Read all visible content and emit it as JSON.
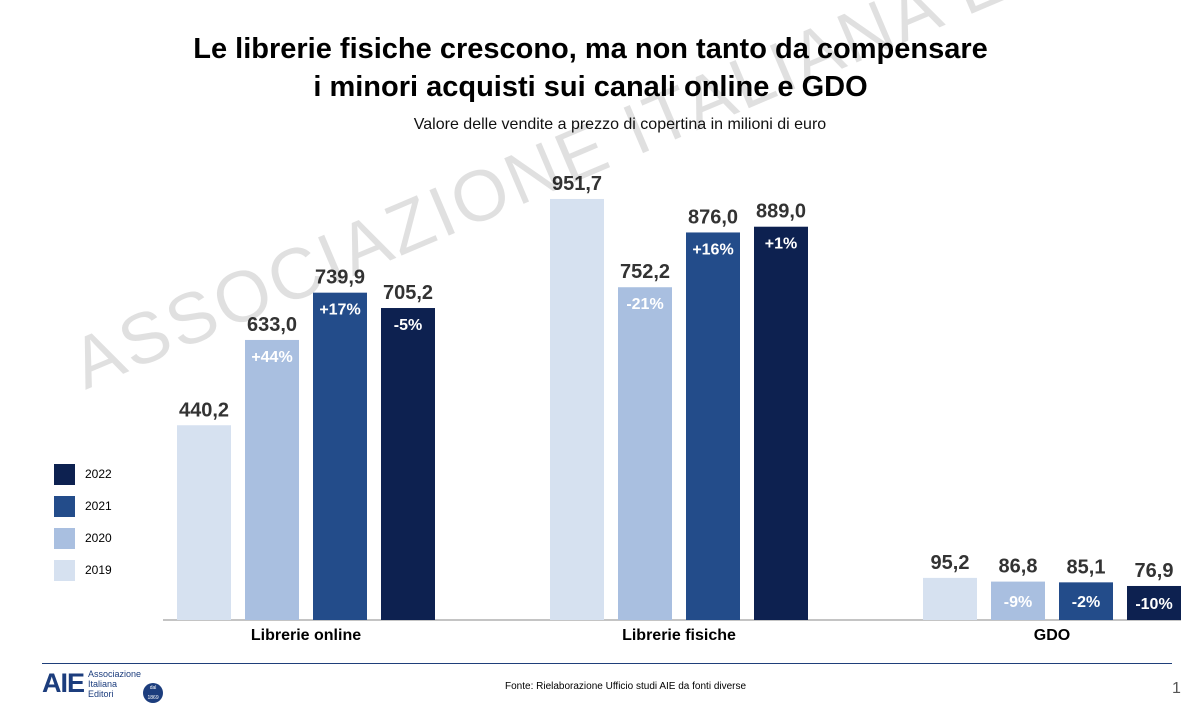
{
  "header": {
    "title_line1": "Le librerie fisiche crescono, ma non tanto da compensare",
    "title_line2": "i minori acquisti sui canali online e GDO",
    "subtitle": "Valore delle vendite a prezzo di copertina in milioni di euro"
  },
  "watermark": "ASSOCIAZIONE ITALIANA EDITORI",
  "legend": [
    {
      "label": "2022",
      "color": "#0d2150"
    },
    {
      "label": "2021",
      "color": "#234c8a"
    },
    {
      "label": "2020",
      "color": "#a9bfe0"
    },
    {
      "label": "2019",
      "color": "#d6e1f0"
    }
  ],
  "footer": {
    "logo": "AIE",
    "logo_line1": "Associazione",
    "logo_line2": "Italiana",
    "logo_line3": "Editori",
    "badge_line1": "dal",
    "badge_line2": "1869",
    "source": "Fonte: Rielaborazione Ufficio studi AIE da fonti diverse",
    "page": "1"
  },
  "chart_data": {
    "type": "bar",
    "title": "Le librerie fisiche crescono, ma non tanto da compensare i minori acquisti sui canali online e GDO",
    "subtitle": "Valore delle vendite a prezzo di copertina in milioni di euro",
    "categories": [
      "Librerie online",
      "Librerie fisiche",
      "GDO"
    ],
    "series": [
      {
        "name": "2019",
        "color": "#d6e1f0",
        "values": [
          440.2,
          951.7,
          95.2
        ],
        "labels": [
          "440,2",
          "951,7",
          "95,2"
        ],
        "changes": [
          "",
          "",
          ""
        ]
      },
      {
        "name": "2020",
        "color": "#a9bfe0",
        "values": [
          633.0,
          752.2,
          86.8
        ],
        "labels": [
          "633,0",
          "752,2",
          "86,8"
        ],
        "changes": [
          "+44%",
          "-21%",
          "-9%"
        ]
      },
      {
        "name": "2021",
        "color": "#234c8a",
        "values": [
          739.9,
          876.0,
          85.1
        ],
        "labels": [
          "739,9",
          "876,0",
          "85,1"
        ],
        "changes": [
          "+17%",
          "+16%",
          "-2%"
        ]
      },
      {
        "name": "2022",
        "color": "#0d2150",
        "values": [
          705.2,
          889.0,
          76.9
        ],
        "labels": [
          "705,2",
          "889,0",
          "76,9"
        ],
        "changes": [
          "-5%",
          "+1%",
          "-10%"
        ]
      }
    ],
    "ylim": [
      0,
      1000
    ],
    "grid": false,
    "legend_position": "left"
  }
}
